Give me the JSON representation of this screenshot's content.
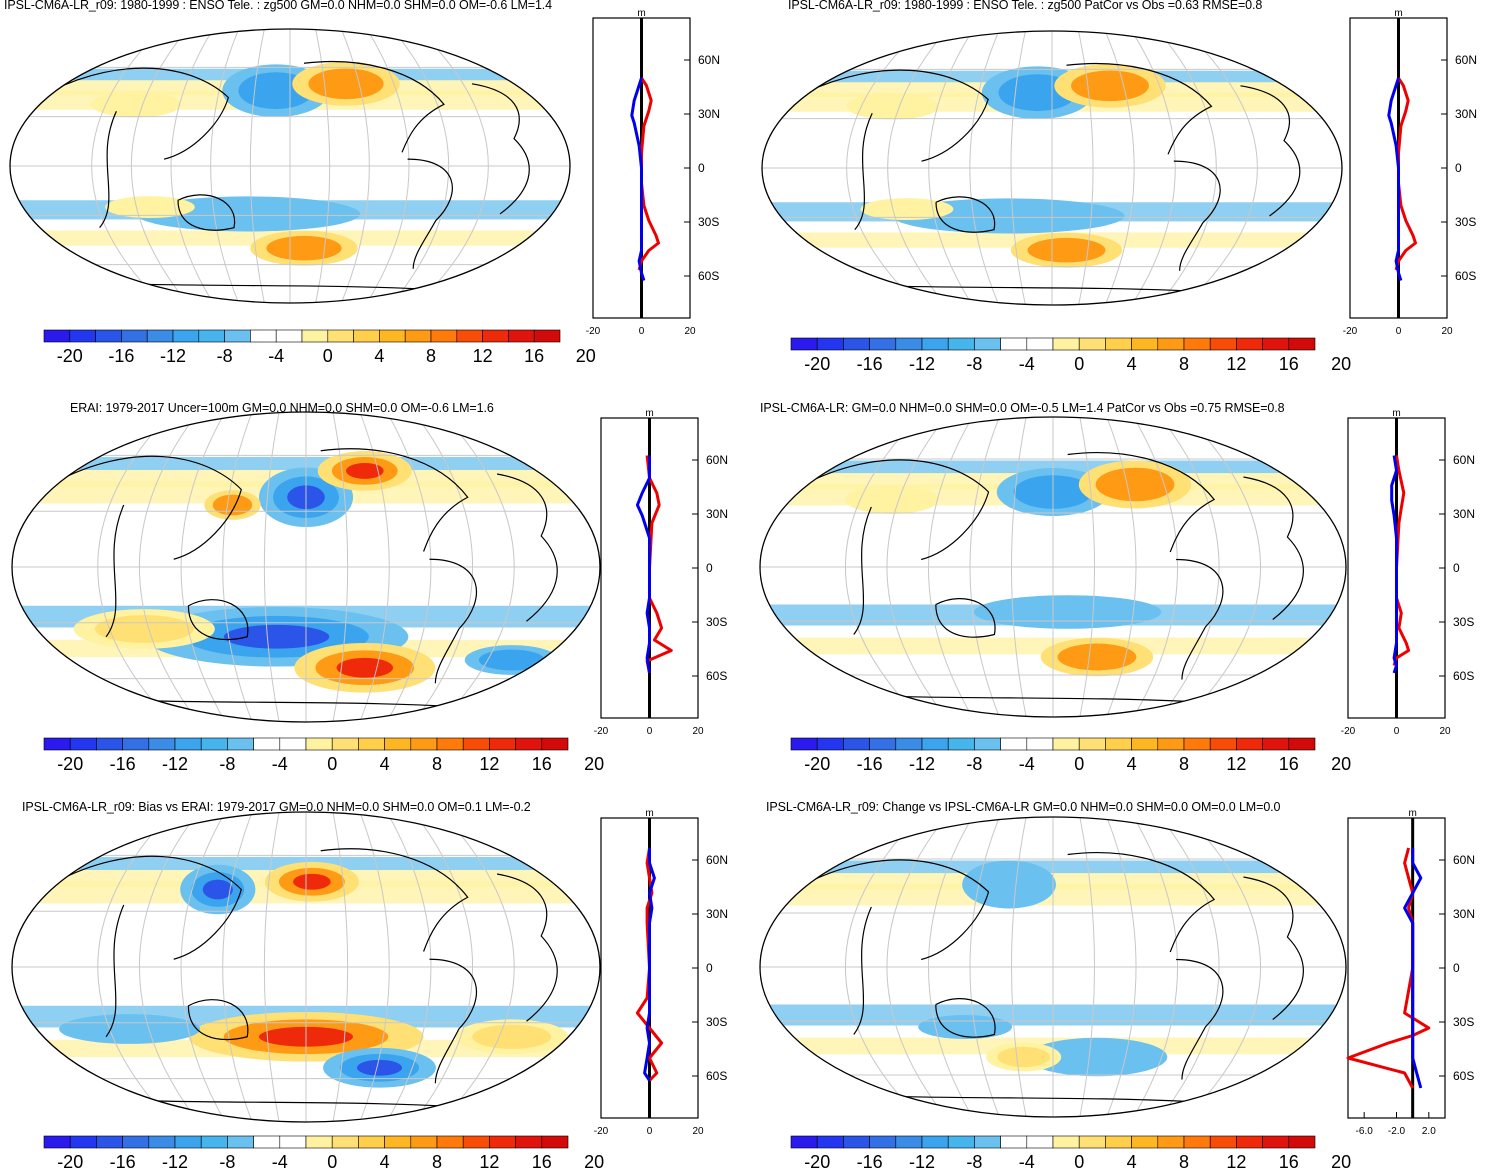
{
  "colorbar": {
    "colors": [
      "#2a1aee",
      "#2337f0",
      "#2a55e8",
      "#3370e6",
      "#3a8ce6",
      "#3aa5ee",
      "#46b5ee",
      "#6ac0ee",
      "#ffffff",
      "#ffffff",
      "#fff2a0",
      "#ffe074",
      "#ffce4a",
      "#ffb623",
      "#ff9a14",
      "#ff7a0a",
      "#f74d06",
      "#ee2a0a",
      "#e0140c",
      "#d20a0a"
    ],
    "labels": [
      "-20",
      "-16",
      "-12",
      "-8",
      "-4",
      "0",
      "4",
      "8",
      "12",
      "16",
      "20"
    ],
    "change_labels": [
      "-6.0",
      "-2.0",
      "2.0"
    ]
  },
  "lat_labels": [
    "60N",
    "30N",
    "0",
    "30S",
    "60S"
  ],
  "profile_unit": "m",
  "chart_data": [
    {
      "type": "heatmap",
      "id": "p1",
      "title": "IPSL-CM6A-LR_r09: 1980-1999 : ENSO Tele. : zg500 GM=0.0 NHM=0.0 SHM=0.0 OM=-0.6 LM=1.4",
      "xlim": [
        -20,
        20
      ],
      "xticks": [
        "-20",
        "0",
        "20"
      ],
      "blue": [
        [
          0.6,
          0
        ],
        [
          0.45,
          -3
        ],
        [
          0.35,
          -4
        ],
        [
          0.3,
          -3
        ],
        [
          0.15,
          -1
        ],
        [
          0,
          0
        ],
        [
          -0.2,
          0
        ],
        [
          -0.35,
          0
        ],
        [
          -0.55,
          0
        ],
        [
          -0.62,
          -1
        ],
        [
          -0.7,
          0
        ],
        [
          -0.75,
          1
        ]
      ],
      "red": [
        [
          0.6,
          0
        ],
        [
          0.55,
          2
        ],
        [
          0.45,
          4
        ],
        [
          0.38,
          3
        ],
        [
          0.28,
          1
        ],
        [
          0.1,
          0
        ],
        [
          -0.1,
          0
        ],
        [
          -0.25,
          1
        ],
        [
          -0.35,
          3
        ],
        [
          -0.45,
          6
        ],
        [
          -0.5,
          7
        ],
        [
          -0.55,
          3
        ],
        [
          -0.62,
          0
        ],
        [
          -0.68,
          -1
        ]
      ],
      "blobs": [
        {
          "c": "b",
          "x": -0.05,
          "y": 0.55,
          "rx": 0.12,
          "ry": 0.12,
          "v": 2
        },
        {
          "c": "r",
          "x": 0.2,
          "y": 0.6,
          "rx": 0.12,
          "ry": 0.1,
          "v": 2
        },
        {
          "c": "y",
          "x": -0.55,
          "y": 0.45,
          "rx": 0.1,
          "ry": 0.06,
          "v": 1
        },
        {
          "c": "r",
          "x": 0.05,
          "y": -0.6,
          "rx": 0.12,
          "ry": 0.08,
          "v": 2
        },
        {
          "c": "b",
          "x": -0.15,
          "y": -0.35,
          "rx": 0.25,
          "ry": 0.08,
          "v": 1
        },
        {
          "c": "y",
          "x": -0.5,
          "y": -0.3,
          "rx": 0.1,
          "ry": 0.05,
          "v": 1
        }
      ]
    },
    {
      "type": "heatmap",
      "id": "p2",
      "title": "IPSL-CM6A-LR_r09: 1980-1999 : ENSO Tele. : zg500 PatCor vs Obs =0.63 RMSE=0.8",
      "xlim": [
        -20,
        20
      ],
      "xticks": [
        "-20",
        "0",
        "20"
      ],
      "blue": [
        [
          0.6,
          0
        ],
        [
          0.45,
          -3
        ],
        [
          0.35,
          -4
        ],
        [
          0.3,
          -3
        ],
        [
          0.15,
          -1
        ],
        [
          0,
          0
        ],
        [
          -0.2,
          0
        ],
        [
          -0.35,
          0
        ],
        [
          -0.55,
          0
        ],
        [
          -0.62,
          -1
        ],
        [
          -0.7,
          0
        ],
        [
          -0.75,
          1
        ]
      ],
      "red": [
        [
          0.6,
          0
        ],
        [
          0.55,
          2
        ],
        [
          0.45,
          4
        ],
        [
          0.38,
          3
        ],
        [
          0.28,
          1
        ],
        [
          0.1,
          0
        ],
        [
          -0.1,
          0
        ],
        [
          -0.25,
          1
        ],
        [
          -0.35,
          3
        ],
        [
          -0.45,
          6
        ],
        [
          -0.5,
          7
        ],
        [
          -0.55,
          3
        ],
        [
          -0.62,
          0
        ],
        [
          -0.68,
          -1
        ]
      ],
      "blobs": [
        {
          "c": "b",
          "x": -0.05,
          "y": 0.55,
          "rx": 0.12,
          "ry": 0.12,
          "v": 2
        },
        {
          "c": "r",
          "x": 0.2,
          "y": 0.6,
          "rx": 0.12,
          "ry": 0.1,
          "v": 2
        },
        {
          "c": "y",
          "x": -0.55,
          "y": 0.45,
          "rx": 0.1,
          "ry": 0.06,
          "v": 1
        },
        {
          "c": "r",
          "x": 0.05,
          "y": -0.6,
          "rx": 0.12,
          "ry": 0.08,
          "v": 2
        },
        {
          "c": "b",
          "x": -0.15,
          "y": -0.35,
          "rx": 0.25,
          "ry": 0.08,
          "v": 1
        },
        {
          "c": "y",
          "x": -0.5,
          "y": -0.3,
          "rx": 0.1,
          "ry": 0.05,
          "v": 1
        }
      ]
    },
    {
      "type": "heatmap",
      "id": "p3",
      "title": "ERAI: 1979-2017 Uncer=100m GM=0.0 NHM=0.0 SHM=0.0 OM=-0.6 LM=1.6",
      "xlim": [
        -20,
        20
      ],
      "xticks": [
        "-20",
        "0",
        "20"
      ],
      "blue": [
        [
          0.75,
          0
        ],
        [
          0.6,
          0
        ],
        [
          0.5,
          -3
        ],
        [
          0.42,
          -5
        ],
        [
          0.35,
          -3
        ],
        [
          0.2,
          0
        ],
        [
          0,
          0
        ],
        [
          -0.2,
          0
        ],
        [
          -0.3,
          -1
        ],
        [
          -0.4,
          0
        ],
        [
          -0.5,
          0
        ],
        [
          -0.6,
          -1
        ],
        [
          -0.7,
          0
        ]
      ],
      "red": [
        [
          0.75,
          -1
        ],
        [
          0.6,
          0
        ],
        [
          0.5,
          3
        ],
        [
          0.42,
          4
        ],
        [
          0.3,
          1
        ],
        [
          0,
          0
        ],
        [
          -0.2,
          0
        ],
        [
          -0.3,
          3
        ],
        [
          -0.4,
          5
        ],
        [
          -0.48,
          2
        ],
        [
          -0.55,
          9
        ],
        [
          -0.62,
          -1
        ],
        [
          -0.7,
          0
        ]
      ],
      "blobs": [
        {
          "c": "b",
          "x": 0.0,
          "y": 0.45,
          "rx": 0.1,
          "ry": 0.12,
          "v": 3
        },
        {
          "c": "r",
          "x": 0.2,
          "y": 0.62,
          "rx": 0.1,
          "ry": 0.08,
          "v": 3
        },
        {
          "c": "r",
          "x": -0.25,
          "y": 0.4,
          "rx": 0.06,
          "ry": 0.06,
          "v": 2
        },
        {
          "c": "b",
          "x": -0.1,
          "y": -0.45,
          "rx": 0.28,
          "ry": 0.12,
          "v": 3
        },
        {
          "c": "r",
          "x": 0.2,
          "y": -0.65,
          "rx": 0.15,
          "ry": 0.1,
          "v": 3
        },
        {
          "c": "y",
          "x": -0.55,
          "y": -0.4,
          "rx": 0.15,
          "ry": 0.08,
          "v": 2
        },
        {
          "c": "b",
          "x": 0.7,
          "y": -0.6,
          "rx": 0.1,
          "ry": 0.06,
          "v": 2
        }
      ]
    },
    {
      "type": "heatmap",
      "id": "p4",
      "title": "IPSL-CM6A-LR: GM=0.0 NHM=0.0 SHM=0.0 OM=-0.5 LM=1.4 PatCor vs Obs =0.75 RMSE=0.8",
      "xlim": [
        -20,
        20
      ],
      "xticks": [
        "-20",
        "0",
        "20"
      ],
      "blue": [
        [
          0.75,
          -1
        ],
        [
          0.65,
          0
        ],
        [
          0.55,
          -2
        ],
        [
          0.45,
          -2
        ],
        [
          0.35,
          -1
        ],
        [
          0.2,
          0
        ],
        [
          0,
          0
        ],
        [
          -0.2,
          0
        ],
        [
          -0.35,
          0
        ],
        [
          -0.5,
          0
        ],
        [
          -0.6,
          -1
        ],
        [
          -0.65,
          0
        ],
        [
          -0.7,
          -1
        ]
      ],
      "red": [
        [
          0.75,
          0
        ],
        [
          0.65,
          1
        ],
        [
          0.5,
          3
        ],
        [
          0.4,
          2
        ],
        [
          0.3,
          1
        ],
        [
          0,
          0
        ],
        [
          -0.2,
          0
        ],
        [
          -0.3,
          2
        ],
        [
          -0.4,
          1
        ],
        [
          -0.5,
          4
        ],
        [
          -0.55,
          5
        ],
        [
          -0.6,
          0
        ],
        [
          -0.65,
          -1
        ]
      ],
      "blobs": [
        {
          "c": "b",
          "x": 0.0,
          "y": 0.5,
          "rx": 0.12,
          "ry": 0.1,
          "v": 2
        },
        {
          "c": "r",
          "x": 0.28,
          "y": 0.55,
          "rx": 0.12,
          "ry": 0.1,
          "v": 2
        },
        {
          "c": "y",
          "x": -0.55,
          "y": 0.45,
          "rx": 0.1,
          "ry": 0.06,
          "v": 1
        },
        {
          "c": "r",
          "x": 0.15,
          "y": -0.6,
          "rx": 0.12,
          "ry": 0.08,
          "v": 2
        },
        {
          "c": "b",
          "x": 0.05,
          "y": -0.3,
          "rx": 0.2,
          "ry": 0.07,
          "v": 1
        }
      ]
    },
    {
      "type": "heatmap",
      "id": "p5",
      "title": "IPSL-CM6A-LR_r09: Bias vs ERAI: 1979-2017 GM=0.0 NHM=0.0 SHM=0.0 OM=0.1 LM=-0.2",
      "xlim": [
        -20,
        20
      ],
      "xticks": [
        "-20",
        "0",
        "20"
      ],
      "blue": [
        [
          0.8,
          0
        ],
        [
          0.7,
          0
        ],
        [
          0.6,
          2
        ],
        [
          0.5,
          0
        ],
        [
          0.4,
          1
        ],
        [
          0.3,
          0
        ],
        [
          0,
          0
        ],
        [
          -0.2,
          0
        ],
        [
          -0.3,
          0
        ],
        [
          -0.4,
          -1
        ],
        [
          -0.5,
          0
        ],
        [
          -0.6,
          -1
        ],
        [
          -0.7,
          -2
        ],
        [
          -0.75,
          0
        ]
      ],
      "red": [
        [
          0.8,
          0
        ],
        [
          0.7,
          -1
        ],
        [
          0.6,
          0
        ],
        [
          0.5,
          1
        ],
        [
          0.4,
          -1
        ],
        [
          0.3,
          -1
        ],
        [
          0,
          0
        ],
        [
          -0.2,
          -1
        ],
        [
          -0.3,
          -5
        ],
        [
          -0.4,
          0
        ],
        [
          -0.5,
          5
        ],
        [
          -0.6,
          0
        ],
        [
          -0.7,
          3
        ],
        [
          -0.75,
          0
        ]
      ],
      "blobs": [
        {
          "c": "b",
          "x": -0.3,
          "y": 0.5,
          "rx": 0.08,
          "ry": 0.1,
          "v": 3
        },
        {
          "c": "r",
          "x": 0.02,
          "y": 0.55,
          "rx": 0.1,
          "ry": 0.08,
          "v": 3
        },
        {
          "c": "r",
          "x": 0.0,
          "y": -0.45,
          "rx": 0.25,
          "ry": 0.1,
          "v": 3
        },
        {
          "c": "b",
          "x": 0.25,
          "y": -0.65,
          "rx": 0.12,
          "ry": 0.08,
          "v": 3
        },
        {
          "c": "b",
          "x": -0.6,
          "y": -0.4,
          "rx": 0.15,
          "ry": 0.06,
          "v": 1
        },
        {
          "c": "y",
          "x": 0.7,
          "y": -0.45,
          "rx": 0.12,
          "ry": 0.07,
          "v": 2
        }
      ]
    },
    {
      "type": "heatmap",
      "id": "p6",
      "title": "IPSL-CM6A-LR_r09: Change vs IPSL-CM6A-LR GM=0.0 NHM=0.0 SHM=0.0 OM=0.0 LM=0.0",
      "xlim": [
        -8,
        4
      ],
      "xticks": [
        "-6.0",
        "-2.0",
        "2.0"
      ],
      "blue": [
        [
          0.8,
          0
        ],
        [
          0.7,
          0
        ],
        [
          0.6,
          1
        ],
        [
          0.5,
          0
        ],
        [
          0.4,
          -1
        ],
        [
          0.3,
          0
        ],
        [
          0,
          0
        ],
        [
          -0.3,
          0
        ],
        [
          -0.45,
          0
        ],
        [
          -0.6,
          0
        ],
        [
          -0.7,
          0.5
        ],
        [
          -0.8,
          1
        ]
      ],
      "red": [
        [
          0.8,
          -0.5
        ],
        [
          0.7,
          -1
        ],
        [
          0.6,
          -0.5
        ],
        [
          0.5,
          0
        ],
        [
          0.4,
          -0.5
        ],
        [
          0.3,
          0
        ],
        [
          0,
          0
        ],
        [
          -0.3,
          -1
        ],
        [
          -0.4,
          2
        ],
        [
          -0.45,
          0
        ],
        [
          -0.5,
          -3
        ],
        [
          -0.6,
          -8
        ],
        [
          -0.7,
          -1
        ],
        [
          -0.8,
          0
        ]
      ],
      "blobs": [
        {
          "c": "b",
          "x": -0.15,
          "y": 0.55,
          "rx": 0.1,
          "ry": 0.1,
          "v": 1
        },
        {
          "c": "b",
          "x": 0.15,
          "y": -0.6,
          "rx": 0.15,
          "ry": 0.08,
          "v": 1
        },
        {
          "c": "y",
          "x": -0.1,
          "y": -0.6,
          "rx": 0.08,
          "ry": 0.06,
          "v": 2
        },
        {
          "c": "b",
          "x": -0.3,
          "y": -0.4,
          "rx": 0.1,
          "ry": 0.05,
          "v": 1
        }
      ]
    }
  ]
}
